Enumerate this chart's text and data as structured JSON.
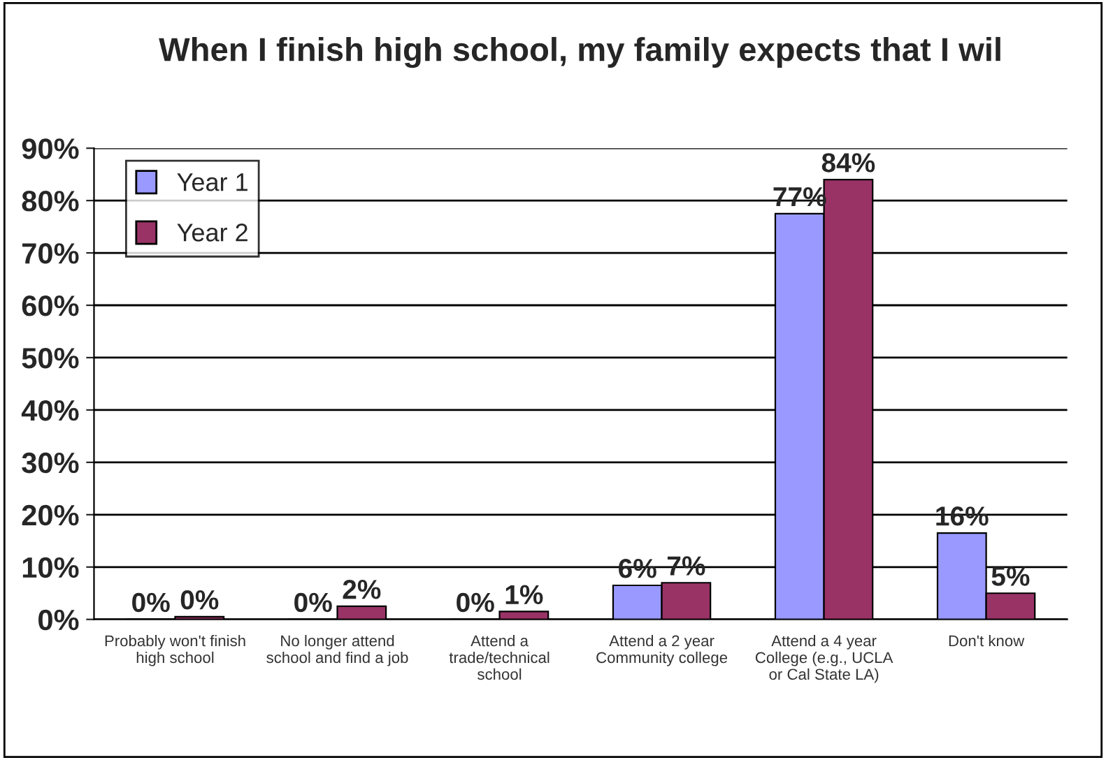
{
  "chart_data": {
    "type": "bar",
    "title": "When I finish high school, my family expects that I wil",
    "categories": [
      "Probably won't finish\nhigh school",
      "No longer attend\nschool and find a job",
      "Attend a\ntrade/technical\nschool",
      "Attend a 2 year\nCommunity college",
      "Attend a 4 year\nCollege (e.g., UCLA\nor Cal State LA)",
      "Don't know"
    ],
    "series": [
      {
        "name": "Year 1",
        "color": "#9999ff",
        "values": [
          0,
          0,
          0,
          6.5,
          77.5,
          16.5
        ],
        "value_labels": [
          "0%",
          "0%",
          "0%",
          "6%",
          "77%",
          "16%"
        ]
      },
      {
        "name": "Year 2",
        "color": "#993366",
        "values": [
          0.5,
          2.5,
          1.5,
          7,
          84,
          5
        ],
        "value_labels": [
          "0%",
          "2%",
          "1%",
          "7%",
          "84%",
          "5%"
        ]
      }
    ],
    "ylim": [
      0,
      90
    ],
    "yticks": [
      {
        "value": 0,
        "label": "0%"
      },
      {
        "value": 10,
        "label": "10%"
      },
      {
        "value": 20,
        "label": "20%"
      },
      {
        "value": 30,
        "label": "30%"
      },
      {
        "value": 40,
        "label": "40%"
      },
      {
        "value": 50,
        "label": "50%"
      },
      {
        "value": 60,
        "label": "60%"
      },
      {
        "value": 70,
        "label": "70%"
      },
      {
        "value": 80,
        "label": "80%"
      },
      {
        "value": 90,
        "label": "90%"
      }
    ],
    "grid": "y",
    "legend": "top left"
  }
}
